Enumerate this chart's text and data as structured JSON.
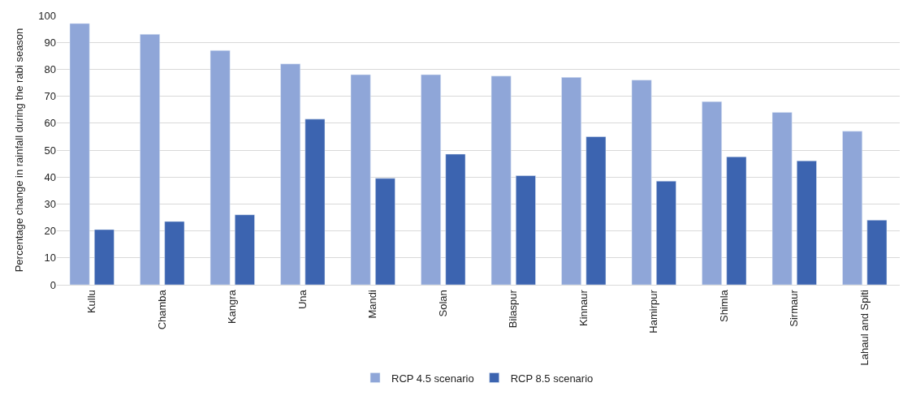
{
  "chart_data": {
    "type": "bar",
    "ylabel": "Percentage change in rainfall during the rabi season",
    "categories": [
      "Kullu",
      "Chamba",
      "Kangra",
      "Una",
      "Mandi",
      "Solan",
      "Bilaspur",
      "Kinnaur",
      "Hamirpur",
      "Shimla",
      "Sirmaur",
      "Lahaul and Spiti"
    ],
    "series": [
      {
        "name": "RCP 4.5 scenario",
        "color": "#8fa6d8",
        "values": [
          97,
          93,
          87,
          82,
          78,
          78,
          77.5,
          77,
          76,
          68,
          64,
          57
        ]
      },
      {
        "name": "RCP 8.5 scenario",
        "color": "#3c64b0",
        "values": [
          20.5,
          23.5,
          26,
          61.5,
          39.5,
          48.5,
          40.5,
          55,
          38.5,
          47.5,
          46,
          24
        ]
      }
    ],
    "ylim": [
      0,
      100
    ],
    "yticks": [
      0,
      10,
      20,
      30,
      40,
      50,
      60,
      70,
      80,
      90,
      100
    ],
    "grid": "y",
    "legend": "bottom"
  }
}
